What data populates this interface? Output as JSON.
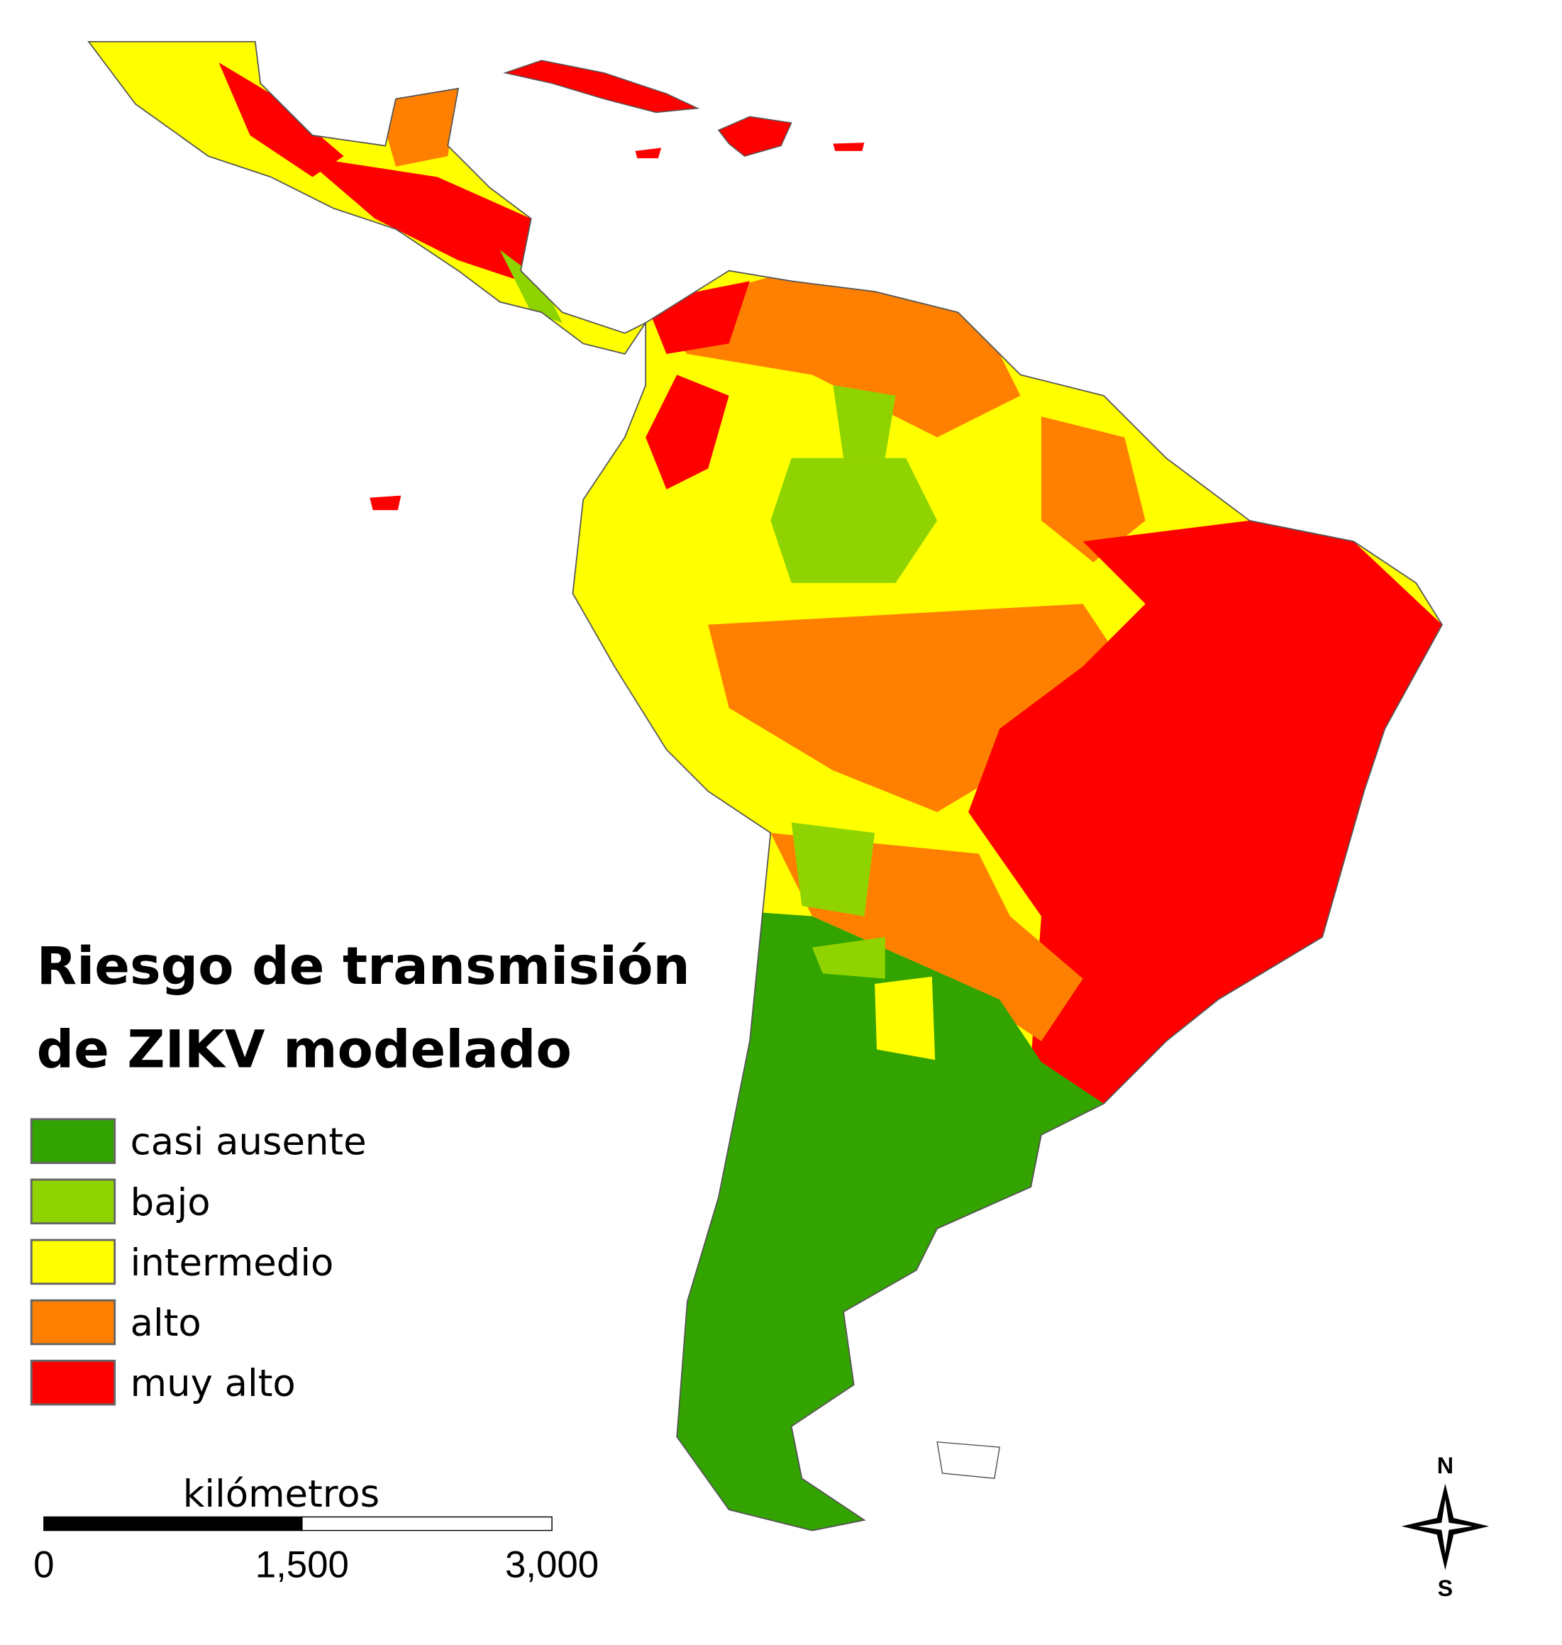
{
  "title": [
    "Riesgo de transmisión",
    "de ZIKV modelado"
  ],
  "legend": [
    {
      "label": "casi ausente",
      "color": "#33a300"
    },
    {
      "label": "bajo",
      "color": "#8fd400"
    },
    {
      "label": "intermedio",
      "color": "#ffff00"
    },
    {
      "label": "alto",
      "color": "#ff8000"
    },
    {
      "label": "muy alto",
      "color": "#ff0000"
    }
  ],
  "scale_bar": {
    "unit": "kilómetros",
    "labels": [
      "0",
      "1,500",
      "3,000"
    ]
  },
  "compass": {
    "north": "N",
    "south": "S"
  }
}
